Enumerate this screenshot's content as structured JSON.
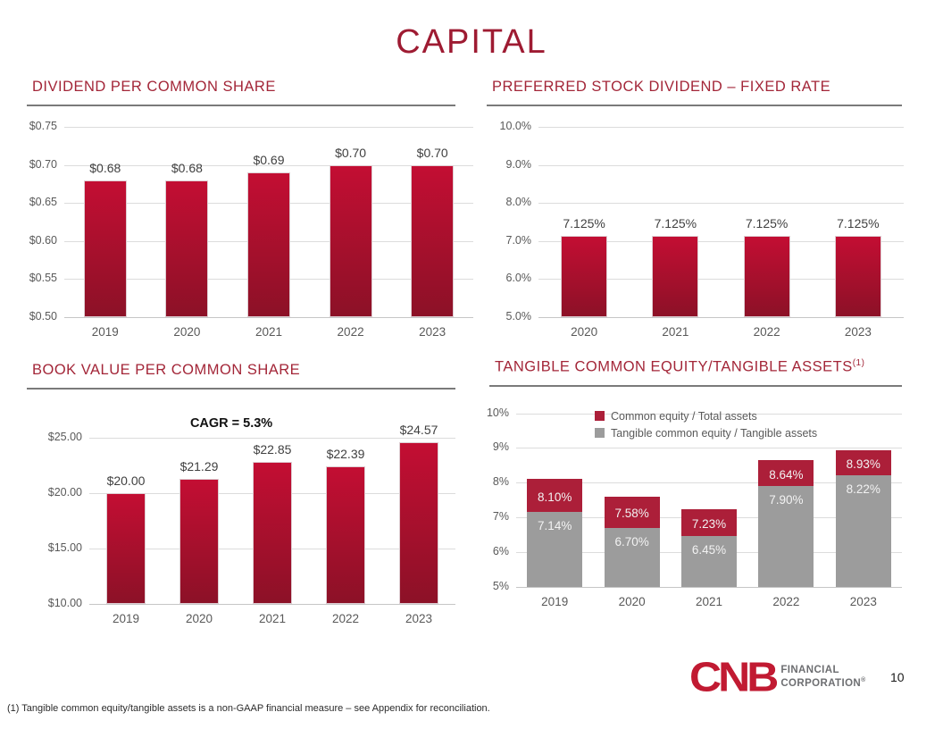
{
  "slide": {
    "title": "CAPITAL",
    "page_number": "10",
    "footnote": "(1) Tangible common equity/tangible assets is a non-GAAP financial measure  – see Appendix for reconciliation."
  },
  "logo": {
    "cnb": "CNB",
    "line1": "FINANCIAL",
    "line2": "CORPORATION",
    "registered": "®"
  },
  "colors": {
    "accent_red": "#9E1B32",
    "header_red": "#A32638",
    "bar_gradient_top": "#C30E33",
    "bar_gradient_bottom": "#8C1127",
    "solid_red": "#AC1F39",
    "gray_bar": "#9C9C9C",
    "axis_text": "#595959",
    "gridline": "#DCDCDC"
  },
  "chart_data": [
    {
      "id": "dividend-per-common-share",
      "type": "bar",
      "title": "DIVIDEND PER COMMON SHARE",
      "categories": [
        "2019",
        "2020",
        "2021",
        "2022",
        "2023"
      ],
      "values": [
        0.68,
        0.68,
        0.69,
        0.7,
        0.7
      ],
      "labels": [
        "$0.68",
        "$0.68",
        "$0.69",
        "$0.70",
        "$0.70"
      ],
      "ylim": [
        0.5,
        0.75
      ],
      "yticks": [
        "$0.75",
        "$0.70",
        "$0.65",
        "$0.60",
        "$0.55",
        "$0.50"
      ],
      "grid": true
    },
    {
      "id": "preferred-stock-dividend-fixed-rate",
      "type": "bar",
      "title": "PREFERRED STOCK DIVIDEND – FIXED RATE",
      "categories": [
        "2020",
        "2021",
        "2022",
        "2023"
      ],
      "values": [
        7.125,
        7.125,
        7.125,
        7.125
      ],
      "labels": [
        "7.125%",
        "7.125%",
        "7.125%",
        "7.125%"
      ],
      "ylim": [
        5.0,
        10.0
      ],
      "yticks": [
        "10.0%",
        "9.0%",
        "8.0%",
        "7.0%",
        "6.0%",
        "5.0%"
      ],
      "grid": true
    },
    {
      "id": "book-value-per-common-share",
      "type": "bar",
      "title": "BOOK VALUE PER COMMON SHARE",
      "annotation": "CAGR = 5.3%",
      "categories": [
        "2019",
        "2020",
        "2021",
        "2022",
        "2023"
      ],
      "values": [
        20.0,
        21.29,
        22.85,
        22.39,
        24.57
      ],
      "labels": [
        "$20.00",
        "$21.29",
        "$22.85",
        "$22.39",
        "$24.57"
      ],
      "ylim": [
        10.0,
        25.0
      ],
      "yticks": [
        "$25.00",
        "$20.00",
        "$15.00",
        "$10.00"
      ],
      "grid": true
    },
    {
      "id": "tangible-common-equity-tangible-assets",
      "type": "bar",
      "title": "TANGIBLE COMMON EQUITY/TANGIBLE ASSETS",
      "title_superscript": "(1)",
      "categories": [
        "2019",
        "2020",
        "2021",
        "2022",
        "2023"
      ],
      "series": [
        {
          "name": "Common equity / Total assets",
          "color": "#AC1F39",
          "values": [
            8.1,
            7.58,
            7.23,
            8.64,
            8.93
          ],
          "labels": [
            "8.10%",
            "7.58%",
            "7.23%",
            "8.64%",
            "8.93%"
          ]
        },
        {
          "name": "Tangible common equity / Tangible assets",
          "color": "#9C9C9C",
          "values": [
            7.14,
            6.7,
            6.45,
            7.9,
            8.22
          ],
          "labels": [
            "7.14%",
            "6.70%",
            "6.45%",
            "7.90%",
            "8.22%"
          ]
        }
      ],
      "ylim": [
        5,
        10
      ],
      "yticks": [
        "10%",
        "9%",
        "8%",
        "7%",
        "6%",
        "5%"
      ],
      "legend_position": "inside-top",
      "grid": true
    }
  ]
}
